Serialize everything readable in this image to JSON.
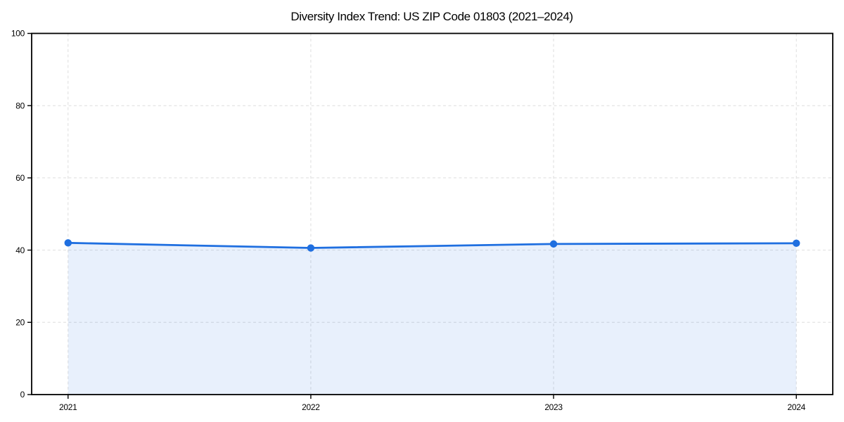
{
  "header": {
    "title": "Diversity Index Trend: US ZIP Code 01803 (2021–2024)"
  },
  "chart_data": {
    "type": "line",
    "title": "Diversity Index Trend: US ZIP Code 01803 (2021–2024)",
    "categories": [
      "2021",
      "2022",
      "2023",
      "2024"
    ],
    "values": [
      42.0,
      40.6,
      41.7,
      41.9
    ],
    "series_name": "Diversity Index",
    "xlabel": "",
    "ylabel": "",
    "ylim": [
      0,
      100
    ],
    "yticks": [
      0,
      20,
      40,
      60,
      80,
      100
    ],
    "grid": true,
    "grid_style": "dashed",
    "legend_position": "none",
    "area_fill": true,
    "marker": "circle",
    "colors": {
      "line": "#1f6fe0",
      "marker": "#1f6fe0",
      "area": "rgba(31,111,224,0.10)",
      "grid": "#dedede",
      "axis": "#000000",
      "text": "#000000",
      "background": "#ffffff"
    }
  }
}
